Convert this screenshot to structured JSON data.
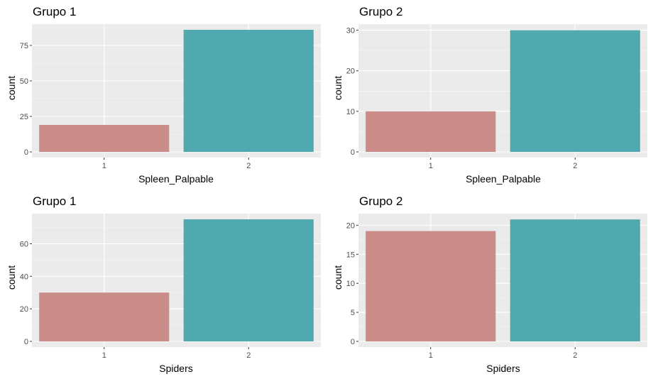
{
  "chart_data": [
    {
      "type": "bar",
      "title": "Grupo 1",
      "xlabel": "Spleen_Palpable",
      "ylabel": "count",
      "categories": [
        "1",
        "2"
      ],
      "values": [
        19,
        86
      ],
      "ylim": [
        0,
        90
      ],
      "yticks": [
        0,
        25,
        50,
        75
      ],
      "colors": [
        "#C98C89",
        "#4FA9AF"
      ],
      "grid": true,
      "background": "#EBEBEB"
    },
    {
      "type": "bar",
      "title": "Grupo 2",
      "xlabel": "Spleen_Palpable",
      "ylabel": "count",
      "categories": [
        "1",
        "2"
      ],
      "values": [
        10,
        30
      ],
      "ylim": [
        0,
        31.5
      ],
      "yticks": [
        0,
        10,
        20,
        30
      ],
      "colors": [
        "#C98C89",
        "#4FA9AF"
      ],
      "grid": true,
      "background": "#EBEBEB"
    },
    {
      "type": "bar",
      "title": "Grupo 1",
      "xlabel": "Spiders",
      "ylabel": "count",
      "categories": [
        "1",
        "2"
      ],
      "values": [
        30,
        75
      ],
      "ylim": [
        0,
        78.5
      ],
      "yticks": [
        0,
        20,
        40,
        60
      ],
      "colors": [
        "#C98C89",
        "#4FA9AF"
      ],
      "grid": true,
      "background": "#EBEBEB"
    },
    {
      "type": "bar",
      "title": "Grupo 2",
      "xlabel": "Spiders",
      "ylabel": "count",
      "categories": [
        "1",
        "2"
      ],
      "values": [
        19,
        21
      ],
      "ylim": [
        0,
        22
      ],
      "yticks": [
        0,
        5,
        10,
        15,
        20
      ],
      "colors": [
        "#C98C89",
        "#4FA9AF"
      ],
      "grid": true,
      "background": "#EBEBEB"
    }
  ]
}
